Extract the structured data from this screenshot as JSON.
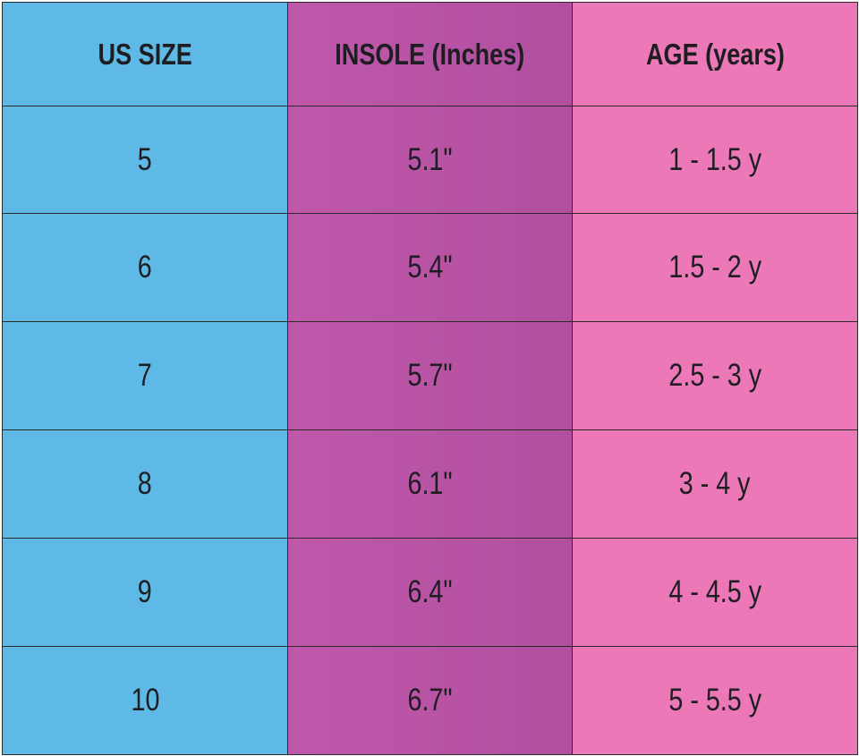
{
  "table": {
    "headers": [
      "US SIZE",
      "INSOLE (Inches)",
      "AGE (years)"
    ],
    "rows": [
      [
        "5",
        "5.1\"",
        "1 - 1.5 y"
      ],
      [
        "6",
        "5.4\"",
        "1.5 - 2 y"
      ],
      [
        "7",
        "5.7\"",
        "2.5 - 3 y"
      ],
      [
        "8",
        "6.1\"",
        "3 - 4 y"
      ],
      [
        "9",
        "6.4\"",
        "4 - 4.5 y"
      ],
      [
        "10",
        "6.7\"",
        "5 - 5.5 y"
      ]
    ]
  }
}
